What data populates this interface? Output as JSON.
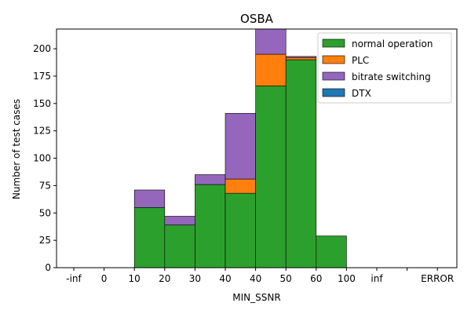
{
  "chart_data": {
    "type": "bar",
    "stacked": true,
    "title": "OSBA",
    "xlabel": "MIN_SSNR",
    "ylabel": "Number of test cases",
    "ylim": [
      0,
      218
    ],
    "yticks": [
      0,
      25,
      50,
      75,
      100,
      125,
      150,
      175,
      200
    ],
    "xtick_labels": [
      "-inf",
      "0",
      "10",
      "20",
      "30",
      "40",
      "40",
      "50",
      "60",
      "100",
      "inf",
      "",
      "ERROR"
    ],
    "bin_count": 13,
    "bins": [
      {
        "bin": 2,
        "values": {
          "normal operation": 55,
          "PLC": 0,
          "bitrate switching": 16,
          "DTX": 0
        }
      },
      {
        "bin": 3,
        "values": {
          "normal operation": 39,
          "PLC": 0,
          "bitrate switching": 8,
          "DTX": 0
        }
      },
      {
        "bin": 4,
        "values": {
          "normal operation": 76,
          "PLC": 0,
          "bitrate switching": 9,
          "DTX": 0
        }
      },
      {
        "bin": 5,
        "values": {
          "normal operation": 68,
          "PLC": 13,
          "bitrate switching": 60,
          "DTX": 0
        }
      },
      {
        "bin": 6,
        "values": {
          "normal operation": 166,
          "PLC": 29,
          "bitrate switching": 23,
          "DTX": 0
        }
      },
      {
        "bin": 7,
        "values": {
          "normal operation": 190,
          "PLC": 2,
          "bitrate switching": 1,
          "DTX": 0
        }
      },
      {
        "bin": 8,
        "values": {
          "normal operation": 29,
          "PLC": 0,
          "bitrate switching": 0,
          "DTX": 0
        }
      }
    ],
    "series": [
      {
        "name": "normal operation",
        "color": "#2ca02c"
      },
      {
        "name": "PLC",
        "color": "#ff7f0e"
      },
      {
        "name": "bitrate switching",
        "color": "#9467bd"
      },
      {
        "name": "DTX",
        "color": "#1f77b4"
      }
    ],
    "legend_position": "top-right",
    "grid": false
  }
}
